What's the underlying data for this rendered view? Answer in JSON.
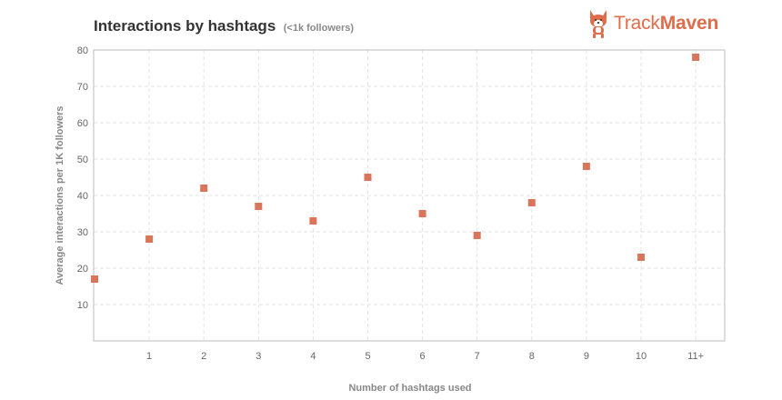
{
  "header": {
    "title": "Interactions by hashtags",
    "subtitle": "(<1k followers)"
  },
  "logo": {
    "icon": "corgi-mascot-icon",
    "text_regular": "Track",
    "text_bold": "Maven",
    "color": "#e06c4a"
  },
  "chart_data": {
    "type": "scatter",
    "xlabel": "Number of hashtags used",
    "ylabel": "Average interactions per 1K followers",
    "categories": [
      "0",
      "1",
      "2",
      "3",
      "4",
      "5",
      "6",
      "7",
      "8",
      "9",
      "10",
      "11+"
    ],
    "x_tick_labels": [
      "",
      "1",
      "2",
      "3",
      "4",
      "5",
      "6",
      "7",
      "8",
      "9",
      "10",
      "11+"
    ],
    "values": [
      17,
      28,
      42,
      37,
      33,
      45,
      35,
      29,
      38,
      48,
      23,
      78
    ],
    "y_ticks": [
      10,
      20,
      30,
      40,
      50,
      60,
      70,
      80
    ],
    "ylim": [
      0,
      80
    ],
    "grid": true,
    "marker_color": "#d9755a",
    "marker_shape": "square"
  }
}
